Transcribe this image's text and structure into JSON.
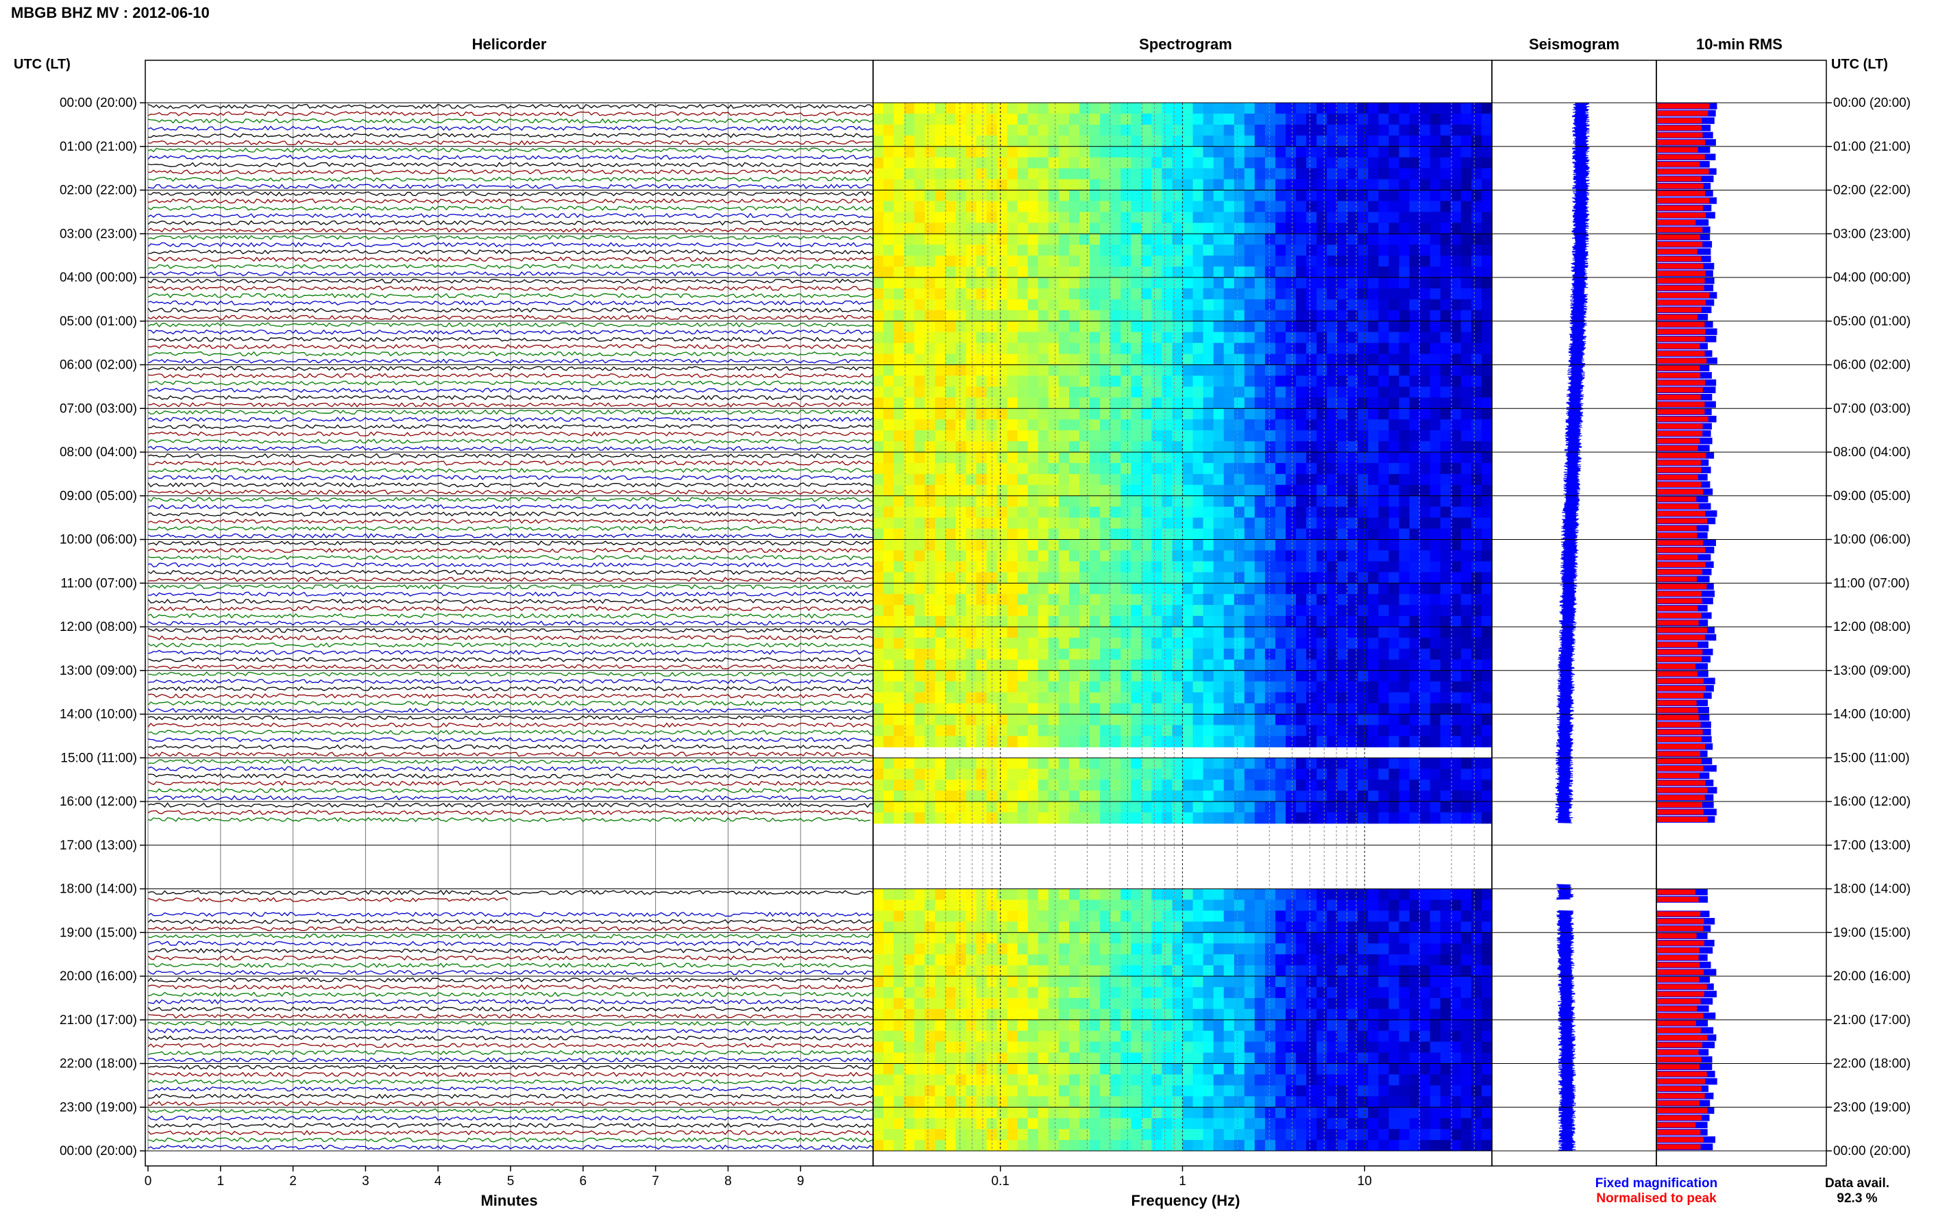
{
  "header": {
    "title": "MBGB BHZ MV : 2012-06-10"
  },
  "panels": {
    "helicorder": "Helicorder",
    "spectrogram": "Spectrogram",
    "seismogram": "Seismogram",
    "rms": "10-min RMS"
  },
  "axis_labels": {
    "left_time": "UTC (LT)",
    "right_time": "UTC (LT)",
    "helicorder_x": "Minutes",
    "spectrogram_x": "Frequency (Hz)"
  },
  "legend": {
    "fixed": "Fixed magnification",
    "normalised": "Normalised to peak",
    "data_avail_label": "Data avail.",
    "data_avail_value": "92.3 %"
  },
  "colors": {
    "trace_cycle": [
      "#000000",
      "#8b0000",
      "#007a00",
      "#0000c8"
    ],
    "seismogram": "#0000ff",
    "rms_fixed": "#0000ff",
    "rms_normalised": "#ff0000",
    "legend_fixed": "#0000ff",
    "legend_normalised": "#ff0000"
  },
  "chart_data": [
    {
      "type": "line",
      "panel": "helicorder",
      "title": "Helicorder",
      "xlabel": "Minutes",
      "x_ticks": [
        "0",
        "1",
        "2",
        "3",
        "4",
        "5",
        "6",
        "7",
        "8",
        "9"
      ],
      "xlim": [
        0,
        10
      ],
      "y_ticks": [
        "00:00 (20:00)",
        "01:00 (21:00)",
        "02:00 (22:00)",
        "03:00 (23:00)",
        "04:00 (00:00)",
        "05:00 (01:00)",
        "06:00 (02:00)",
        "07:00 (03:00)",
        "08:00 (04:00)",
        "09:00 (05:00)",
        "10:00 (06:00)",
        "11:00 (07:00)",
        "12:00 (08:00)",
        "13:00 (09:00)",
        "14:00 (10:00)",
        "15:00 (11:00)",
        "16:00 (12:00)",
        "17:00 (13:00)",
        "18:00 (14:00)",
        "19:00 (15:00)",
        "20:00 (16:00)",
        "21:00 (17:00)",
        "22:00 (18:00)",
        "23:00 (19:00)",
        "00:00 (20:00)"
      ],
      "rows_per_hour": 6,
      "data_gaps_utc_hours": [
        [
          16.5,
          17.9
        ],
        [
          18.25,
          18.5
        ]
      ],
      "grid": true
    },
    {
      "type": "heatmap",
      "panel": "spectrogram",
      "title": "Spectrogram",
      "xlabel": "Frequency (Hz)",
      "x_scale": "log",
      "x_ticks": [
        "0.1",
        "1",
        "10"
      ],
      "xlim": [
        0.02,
        50
      ],
      "y_range_utc_hours": [
        0,
        24
      ],
      "colormap": "jet",
      "data_gaps_utc_hours": [
        [
          14.75,
          14.9
        ],
        [
          16.5,
          17.9
        ],
        [
          18.1,
          18.15
        ],
        [
          18.3,
          18.5
        ]
      ]
    },
    {
      "type": "line",
      "panel": "seismogram",
      "title": "Seismogram",
      "y_range_utc_hours": [
        0,
        24
      ],
      "grid": false
    },
    {
      "type": "bar",
      "panel": "rms",
      "title": "10-min RMS",
      "orientation": "horizontal",
      "y_range_utc_hours": [
        0,
        24
      ],
      "series": [
        {
          "name": "Fixed magnification",
          "color": "#0000ff"
        },
        {
          "name": "Normalised to peak",
          "color": "#ff0000"
        }
      ],
      "data_availability_percent": 92.3
    }
  ]
}
